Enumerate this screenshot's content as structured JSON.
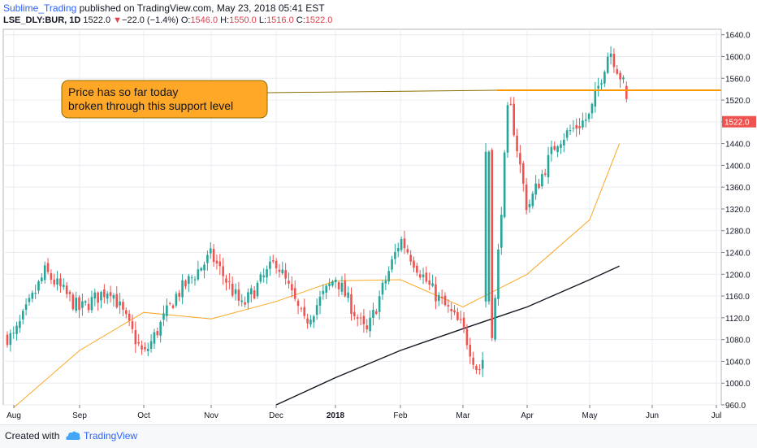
{
  "header": {
    "author": "Sublime_Trading",
    "published": " published on TradingView.com, May 23, 2018 05:41 EST",
    "symbol": "LSE_DLY:BUR, 1D",
    "last": "1522.0",
    "change_arrow": "▼",
    "change": "−22.0 (−1.4%)",
    "open_label": "O:",
    "open": "1546.0",
    "high_label": "H:",
    "high": "1550.0",
    "low_label": "L:",
    "low": "1516.0",
    "close_label": "C:",
    "close": "1522.0"
  },
  "footer": {
    "created_with": "Created with",
    "brand": "TradingView"
  },
  "colors": {
    "up": "#26a69a",
    "down": "#ef5350",
    "ma_fast": "#f9a825",
    "ma_slow": "#131722",
    "support": "#ff9800",
    "callout_fill": "#ffa726",
    "price_label": "#ef5350"
  },
  "chart_data": {
    "type": "candlestick",
    "grid": true,
    "ylim": [
      960,
      1650
    ],
    "y_ticks": [
      960,
      1000,
      1040,
      1080,
      1120,
      1160,
      1200,
      1240,
      1280,
      1320,
      1360,
      1400,
      1440,
      1480,
      1520,
      1560,
      1600,
      1640
    ],
    "x_ticks": [
      "Aug",
      "Sep",
      "Oct",
      "Nov",
      "Dec",
      "2018",
      "Feb",
      "Mar",
      "Apr",
      "May",
      "Jun",
      "Jul"
    ],
    "last_price_label": "1522.0",
    "support_level": 1538,
    "annotation": [
      "Price has so far today",
      "broken through this support level"
    ],
    "series": [
      {
        "kind": "ohlc",
        "anchors": [
          [
            "Aug",
            1085
          ],
          [
            "Aug",
            1205
          ],
          [
            "Sep",
            1135
          ],
          [
            "Sep",
            1175
          ],
          [
            "Oct",
            1050
          ],
          [
            "Oct",
            1160
          ],
          [
            "Nov",
            1235
          ],
          [
            "Nov",
            1140
          ],
          [
            "Dec",
            1225
          ],
          [
            "Dec",
            1110
          ],
          [
            "2018",
            1195
          ],
          [
            "2018",
            1090
          ],
          [
            "Feb",
            1265
          ],
          [
            "Feb",
            1175
          ],
          [
            "Mar",
            1100
          ],
          [
            "Mar",
            1020
          ],
          [
            "Mar",
            1105
          ],
          [
            "Mar",
            1525
          ],
          [
            "Apr",
            1320
          ],
          [
            "Apr",
            1445
          ],
          [
            "May",
            1490
          ],
          [
            "May",
            1615
          ],
          [
            "May",
            1522
          ]
        ]
      },
      {
        "kind": "moving-average-fast",
        "points": [
          [
            "Aug",
            955
          ],
          [
            "Sep",
            1060
          ],
          [
            "Oct",
            1130
          ],
          [
            "Nov",
            1118
          ],
          [
            "Dec",
            1150
          ],
          [
            "2018",
            1188
          ],
          [
            "Feb",
            1190
          ],
          [
            "Mar",
            1140
          ],
          [
            "Apr",
            1200
          ],
          [
            "May",
            1300
          ],
          [
            "May",
            1440
          ]
        ]
      },
      {
        "kind": "moving-average-slow",
        "points": [
          [
            "Dec",
            960
          ],
          [
            "2018",
            1010
          ],
          [
            "Feb",
            1060
          ],
          [
            "Mar",
            1100
          ],
          [
            "Apr",
            1140
          ],
          [
            "May",
            1190
          ],
          [
            "May",
            1215
          ]
        ]
      }
    ]
  }
}
